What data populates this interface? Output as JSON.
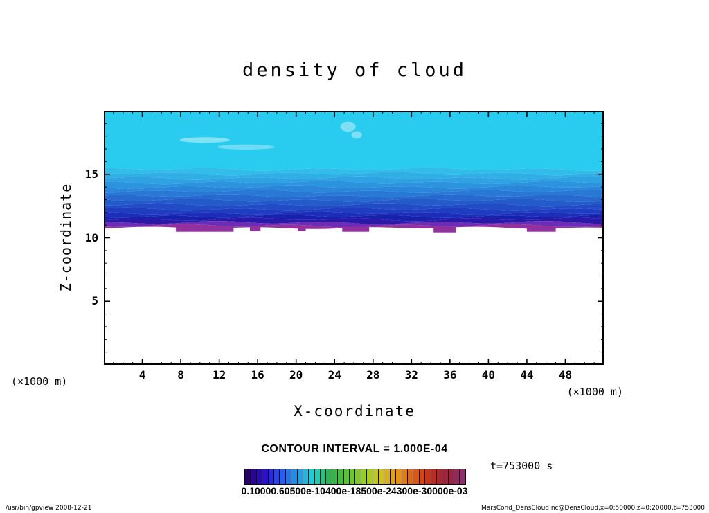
{
  "footer": {
    "left": "/usr/bin/gpview  2008-12-21",
    "right": "MarsCond_DensCloud.nc@DensCloud,x=0:50000,z=0:20000,t=753000"
  },
  "chart_data": {
    "type": "heatmap",
    "title": "density of cloud",
    "xlabel": "X-coordinate",
    "ylabel": "Z-coordinate",
    "x_unit_left": "(×1000 m)",
    "x_unit_right": "(×1000 m)",
    "xlim": [
      0,
      52
    ],
    "zlim": [
      0,
      20
    ],
    "x_ticks_labeled": [
      4,
      8,
      12,
      16,
      20,
      24,
      28,
      32,
      36,
      40,
      44,
      48
    ],
    "y_ticks_labeled": [
      5,
      10,
      15
    ],
    "annotations": {
      "contour_interval": "CONTOUR INTERVAL = 1.000E-04",
      "time": "t=753000 s",
      "colorbar_ticklabels": "0.10000.60500e-10400e-18500e-24300e-30000e-03"
    },
    "field": {
      "description": "filled contours of cloud density: cloud deck spanning full x range, cyan near z=15.5-20, darkening blues from z=15.5 down to z=11.3, purple band near z=11, white (no cloud) below",
      "levels": [
        20,
        15.4,
        15.05,
        14.7,
        14.35,
        14.0,
        13.65,
        13.3,
        12.95,
        12.6,
        12.25,
        11.95,
        11.7,
        11.45,
        11.2,
        10.95,
        10.78
      ],
      "colors": [
        "#29cbee",
        "#31bce9",
        "#30afe6",
        "#2ea2e2",
        "#2c94de",
        "#2a86da",
        "#2878d5",
        "#266ad0",
        "#245bcb",
        "#214cc6",
        "#1f3dc0",
        "#1c2eb9",
        "#1820ae",
        "#2a18a8",
        "#6c2cb4",
        "#93319f"
      ],
      "bump_color": "#93319f",
      "bumps": [
        {
          "x0": 7.5,
          "x1": 13.5,
          "dz": 0.3
        },
        {
          "x0": 15.2,
          "x1": 16.3,
          "dz": 0.25
        },
        {
          "x0": 20.2,
          "x1": 21.0,
          "dz": 0.25
        },
        {
          "x0": 24.8,
          "x1": 27.6,
          "dz": 0.3
        },
        {
          "x0": 34.3,
          "x1": 36.6,
          "dz": 0.35
        },
        {
          "x0": 44.0,
          "x1": 47.0,
          "dz": 0.3
        }
      ],
      "streaks": [
        {
          "x": 10.5,
          "z": 17.7,
          "rx": 2.6,
          "rz": 0.22,
          "color": "#82e2f6"
        },
        {
          "x": 14.8,
          "z": 17.15,
          "rx": 3.0,
          "rz": 0.2,
          "color": "#6edcf4"
        },
        {
          "x": 25.4,
          "z": 18.75,
          "rx": 0.8,
          "rz": 0.4,
          "color": "#7fe0f5"
        },
        {
          "x": 26.3,
          "z": 18.1,
          "rx": 0.55,
          "rz": 0.3,
          "color": "#7fe0f5"
        }
      ]
    },
    "colorbar": {
      "stops": [
        "#2b006e",
        "#2b0bd0",
        "#2458f2",
        "#1d9ae8",
        "#1fd3d3",
        "#27b44a",
        "#55c42e",
        "#95cf22",
        "#cfc618",
        "#e49a12",
        "#e0600e",
        "#c92f17",
        "#a31f3c",
        "#8f2d6e"
      ],
      "cells": 38
    }
  }
}
